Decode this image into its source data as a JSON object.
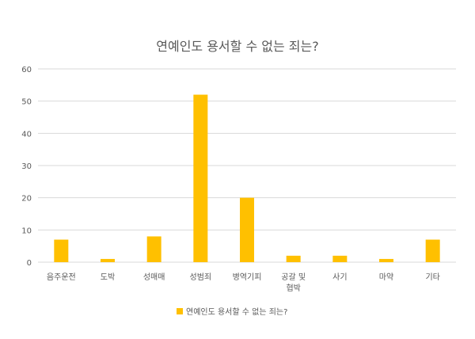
{
  "chart_data": {
    "type": "bar",
    "title": "연예인도 용서할 수 없는 죄는?",
    "categories": [
      "음주운전",
      "도박",
      "성매매",
      "성범죄",
      "병역기피",
      "공갈 및 협박",
      "사기",
      "마약",
      "기타"
    ],
    "category_lines": [
      [
        "음주운전"
      ],
      [
        "도박"
      ],
      [
        "성매매"
      ],
      [
        "성범죄"
      ],
      [
        "병역기피"
      ],
      [
        "공갈 및",
        "협박"
      ],
      [
        "사기"
      ],
      [
        "마약"
      ],
      [
        "기타"
      ]
    ],
    "series": [
      {
        "name": "연예인도 용서할 수 없는 죄는?",
        "values": [
          7,
          1,
          8,
          52,
          20,
          2,
          2,
          1,
          7
        ]
      }
    ],
    "ylim": [
      0,
      60
    ],
    "yticks": [
      0,
      10,
      20,
      30,
      40,
      50,
      60
    ],
    "xlabel": "",
    "ylabel": "",
    "grid": true,
    "legend_position": "bottom",
    "colors": {
      "bar": "#FFC000",
      "grid": "#D9D9D9",
      "text": "#595959"
    }
  }
}
